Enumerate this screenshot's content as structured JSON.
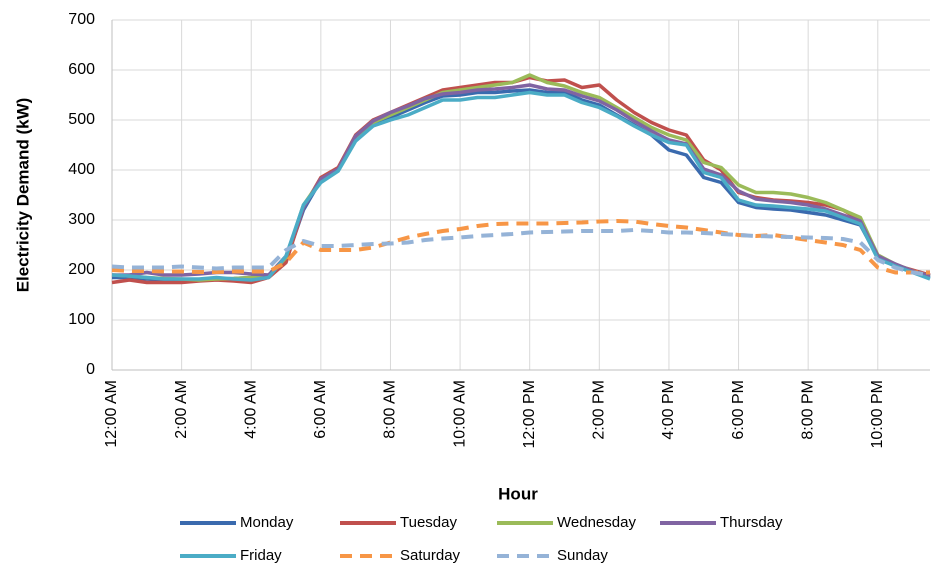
{
  "chart_data": {
    "type": "line",
    "xlabel": "Hour",
    "ylabel": "Electricity Demand (kW)",
    "x": [
      0,
      0.5,
      1,
      1.5,
      2,
      2.5,
      3,
      3.5,
      4,
      4.5,
      5,
      5.5,
      6,
      6.5,
      7,
      7.5,
      8,
      8.5,
      9,
      9.5,
      10,
      10.5,
      11,
      11.5,
      12,
      12.5,
      13,
      13.5,
      14,
      14.5,
      15,
      15.5,
      16,
      16.5,
      17,
      17.5,
      18,
      18.5,
      19,
      19.5,
      20,
      20.5,
      21,
      21.5,
      22,
      22.5,
      23,
      23.5
    ],
    "xlim": [
      0,
      23.5
    ],
    "xticks": [
      {
        "value": 0,
        "label": "12:00 AM"
      },
      {
        "value": 2,
        "label": "2:00 AM"
      },
      {
        "value": 4,
        "label": "4:00 AM"
      },
      {
        "value": 6,
        "label": "6:00 AM"
      },
      {
        "value": 8,
        "label": "8:00 AM"
      },
      {
        "value": 10,
        "label": "10:00 AM"
      },
      {
        "value": 12,
        "label": "12:00 PM"
      },
      {
        "value": 14,
        "label": "2:00 PM"
      },
      {
        "value": 16,
        "label": "4:00 PM"
      },
      {
        "value": 18,
        "label": "6:00 PM"
      },
      {
        "value": 20,
        "label": "8:00 PM"
      },
      {
        "value": 22,
        "label": "10:00 PM"
      }
    ],
    "ylim": [
      0,
      700
    ],
    "yticks": [
      0,
      100,
      200,
      300,
      400,
      500,
      600,
      700
    ],
    "grid": true,
    "legend": "bottom",
    "series": [
      {
        "name": "Monday",
        "color": "#3a6aae",
        "dashed": false,
        "values": [
          185,
          185,
          182,
          180,
          180,
          180,
          182,
          183,
          185,
          190,
          220,
          320,
          380,
          400,
          460,
          490,
          505,
          520,
          535,
          548,
          550,
          555,
          555,
          558,
          560,
          555,
          555,
          540,
          530,
          510,
          490,
          470,
          440,
          430,
          385,
          375,
          335,
          325,
          322,
          320,
          315,
          310,
          300,
          290,
          225,
          210,
          195,
          185
        ]
      },
      {
        "name": "Tuesday",
        "color": "#c0504d",
        "dashed": false,
        "values": [
          175,
          180,
          175,
          175,
          175,
          178,
          180,
          178,
          175,
          185,
          215,
          325,
          385,
          405,
          470,
          500,
          515,
          530,
          545,
          560,
          565,
          570,
          575,
          575,
          585,
          578,
          580,
          565,
          570,
          540,
          515,
          495,
          480,
          470,
          420,
          400,
          355,
          345,
          340,
          338,
          335,
          330,
          320,
          300,
          230,
          210,
          200,
          190
        ]
      },
      {
        "name": "Wednesday",
        "color": "#9bbb59",
        "dashed": false,
        "values": [
          190,
          188,
          185,
          183,
          182,
          180,
          182,
          183,
          185,
          188,
          225,
          330,
          380,
          400,
          465,
          495,
          510,
          525,
          540,
          555,
          560,
          565,
          570,
          575,
          590,
          575,
          568,
          555,
          545,
          525,
          505,
          485,
          470,
          460,
          415,
          405,
          370,
          355,
          355,
          352,
          345,
          335,
          320,
          305,
          230,
          212,
          198,
          188
        ]
      },
      {
        "name": "Thursday",
        "color": "#8064a2",
        "dashed": false,
        "values": [
          190,
          190,
          195,
          190,
          190,
          192,
          195,
          195,
          192,
          190,
          228,
          325,
          382,
          402,
          468,
          498,
          515,
          528,
          543,
          552,
          555,
          560,
          562,
          565,
          570,
          562,
          560,
          548,
          538,
          520,
          498,
          478,
          460,
          452,
          402,
          390,
          358,
          342,
          338,
          335,
          330,
          322,
          310,
          298,
          228,
          212,
          198,
          188
        ]
      },
      {
        "name": "Friday",
        "color": "#4bacc6",
        "dashed": false,
        "values": [
          190,
          188,
          185,
          182,
          182,
          182,
          185,
          182,
          180,
          185,
          228,
          330,
          375,
          398,
          458,
          488,
          500,
          510,
          525,
          540,
          540,
          545,
          545,
          550,
          555,
          550,
          550,
          535,
          525,
          508,
          488,
          470,
          455,
          450,
          395,
          385,
          340,
          330,
          328,
          325,
          322,
          318,
          305,
          292,
          222,
          208,
          195,
          182
        ]
      },
      {
        "name": "Saturday",
        "color": "#f79646",
        "dashed": true,
        "values": [
          200,
          198,
          198,
          197,
          197,
          196,
          196,
          197,
          197,
          197,
          215,
          255,
          240,
          240,
          240,
          245,
          255,
          265,
          272,
          278,
          282,
          288,
          292,
          293,
          293,
          293,
          294,
          295,
          297,
          298,
          297,
          292,
          288,
          285,
          280,
          275,
          270,
          268,
          270,
          265,
          260,
          255,
          250,
          240,
          205,
          195,
          195,
          195
        ]
      },
      {
        "name": "Sunday",
        "color": "#95b3d7",
        "dashed": true,
        "values": [
          207,
          205,
          205,
          205,
          207,
          205,
          203,
          205,
          205,
          205,
          240,
          258,
          248,
          248,
          250,
          252,
          253,
          255,
          260,
          263,
          265,
          268,
          270,
          272,
          275,
          276,
          277,
          278,
          278,
          278,
          280,
          278,
          275,
          275,
          274,
          272,
          270,
          268,
          267,
          266,
          265,
          264,
          262,
          255,
          220,
          205,
          195,
          190
        ]
      }
    ]
  }
}
